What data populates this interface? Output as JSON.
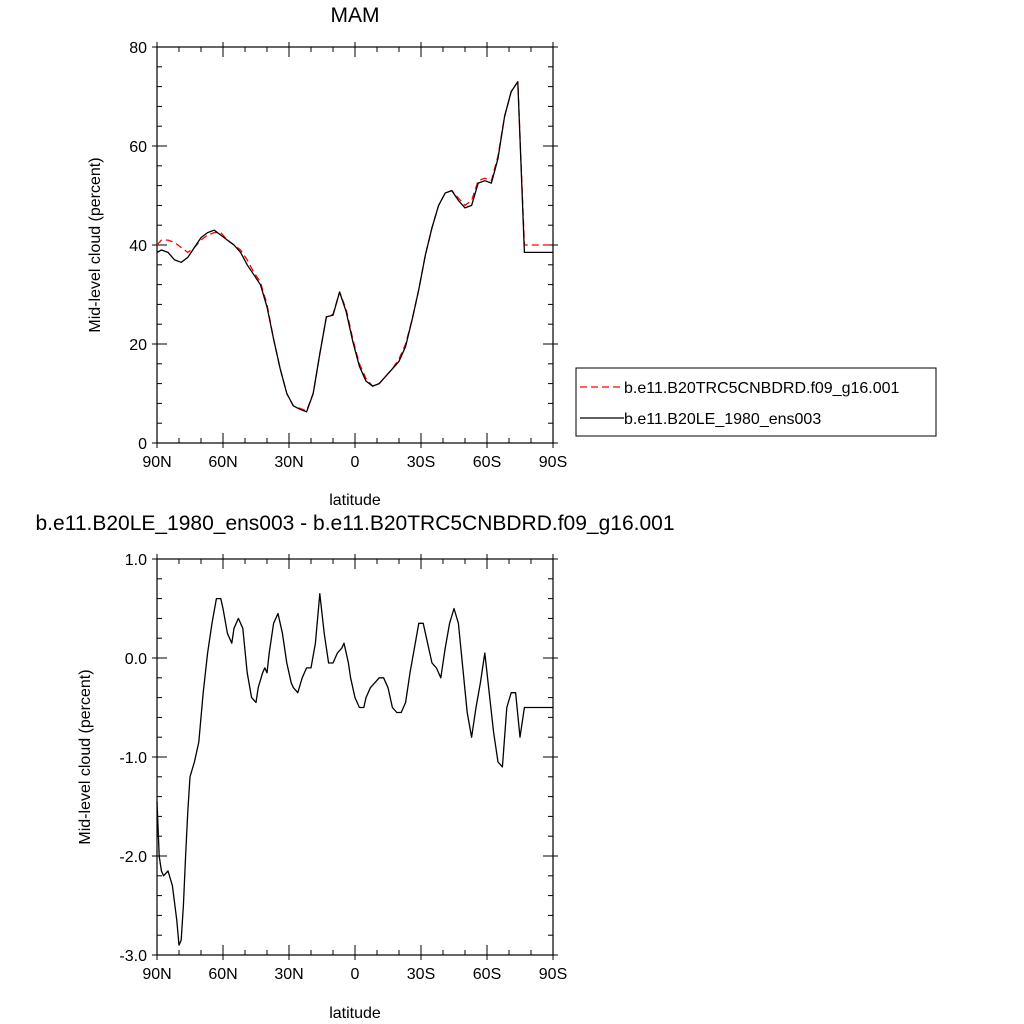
{
  "colors": {
    "series1": "#ff0000",
    "series2": "#000000",
    "axis": "#000000",
    "background": "#ffffff"
  },
  "chart_data": [
    {
      "type": "line",
      "title": "MAM",
      "xlabel": "latitude",
      "ylabel": "Mid-level cloud (percent)",
      "xlim": [
        90,
        -90
      ],
      "ylim": [
        0,
        80
      ],
      "x_ticks": [
        90,
        60,
        30,
        0,
        -30,
        -60,
        -90
      ],
      "x_tick_labels": [
        "90N",
        "60N",
        "30N",
        "0",
        "30S",
        "60S",
        "90S"
      ],
      "y_ticks": [
        0,
        20,
        40,
        60,
        80
      ],
      "y_tick_labels": [
        "0",
        "20",
        "40",
        "60",
        "80"
      ],
      "legend": {
        "position": "right"
      },
      "series": [
        {
          "name": "b.e11.B20TRC5CNBDRD.f09_g16.001",
          "style": "dashed",
          "color": "#ff0000",
          "x": [
            90,
            88,
            85,
            82,
            79,
            76,
            73,
            70,
            67,
            64,
            61,
            58,
            55,
            52,
            49,
            46,
            43,
            40,
            37,
            34,
            31,
            28,
            25,
            22,
            19,
            16,
            13,
            10,
            7,
            4,
            1,
            -2,
            -5,
            -8,
            -11,
            -14,
            -17,
            -20,
            -23,
            -26,
            -29,
            -32,
            -35,
            -38,
            -41,
            -44,
            -47,
            -50,
            -53,
            -56,
            -59,
            -62,
            -65,
            -68,
            -71,
            -74,
            -77,
            -80,
            -83,
            -86,
            -89,
            -90
          ],
          "y": [
            40.0,
            41.0,
            41.0,
            40.5,
            39.5,
            38.5,
            39.5,
            41.0,
            42.0,
            42.5,
            42.5,
            41.0,
            40.0,
            39.0,
            37.0,
            34.5,
            32.5,
            28.0,
            21.0,
            15.0,
            10.0,
            7.5,
            7.0,
            6.5,
            10.0,
            18.0,
            25.5,
            26.0,
            30.5,
            27.0,
            21.0,
            16.0,
            13.0,
            11.5,
            12.0,
            13.5,
            15.0,
            17.0,
            20.0,
            25.0,
            31.0,
            38.0,
            43.5,
            48.0,
            50.5,
            51.0,
            49.5,
            48.0,
            49.0,
            53.0,
            53.5,
            53.0,
            58.0,
            66.0,
            71.0,
            73.0,
            40.0,
            40.0,
            40.0,
            40.0,
            40.0,
            40.0
          ]
        },
        {
          "name": "b.e11.B20LE_1980_ens003",
          "style": "solid",
          "color": "#000000",
          "x": [
            90,
            88,
            85,
            82,
            79,
            76,
            73,
            70,
            67,
            64,
            61,
            58,
            55,
            52,
            49,
            46,
            43,
            40,
            37,
            34,
            31,
            28,
            25,
            22,
            19,
            16,
            13,
            10,
            7,
            4,
            1,
            -2,
            -5,
            -8,
            -11,
            -14,
            -17,
            -20,
            -23,
            -26,
            -29,
            -32,
            -35,
            -38,
            -41,
            -44,
            -47,
            -50,
            -53,
            -56,
            -59,
            -62,
            -65,
            -68,
            -71,
            -74,
            -77,
            -80,
            -83,
            -86,
            -89,
            -90
          ],
          "y": [
            38.5,
            39.0,
            38.5,
            37.0,
            36.5,
            37.5,
            39.5,
            41.5,
            42.5,
            43.0,
            42.0,
            41.0,
            40.0,
            38.5,
            36.0,
            34.0,
            32.0,
            27.5,
            21.0,
            15.0,
            10.0,
            7.5,
            6.8,
            6.3,
            10.0,
            18.0,
            25.5,
            25.8,
            30.5,
            26.5,
            20.5,
            15.5,
            12.5,
            11.5,
            12.0,
            13.5,
            15.0,
            16.5,
            19.5,
            25.0,
            31.0,
            38.0,
            43.5,
            48.0,
            50.5,
            51.0,
            49.0,
            47.5,
            48.0,
            52.5,
            53.0,
            52.5,
            57.5,
            66.0,
            71.0,
            73.0,
            38.5,
            38.5,
            38.5,
            38.5,
            38.5,
            38.5
          ]
        }
      ]
    },
    {
      "type": "line",
      "title": "b.e11.B20LE_1980_ens003 - b.e11.B20TRC5CNBDRD.f09_g16.001",
      "xlabel": "latitude",
      "ylabel": "Mid-level cloud (percent)",
      "xlim": [
        90,
        -90
      ],
      "ylim": [
        -3.0,
        1.0
      ],
      "x_ticks": [
        90,
        60,
        30,
        0,
        -30,
        -60,
        -90
      ],
      "x_tick_labels": [
        "90N",
        "60N",
        "30N",
        "0",
        "30S",
        "60S",
        "90S"
      ],
      "y_ticks": [
        -3.0,
        -2.0,
        -1.0,
        0.0,
        1.0
      ],
      "y_tick_labels": [
        "-3.0",
        "-2.0",
        "-1.0",
        "0.0",
        "1.0"
      ],
      "series": [
        {
          "color": "#000000",
          "style": "solid",
          "x": [
            90,
            89,
            88,
            87,
            85,
            83,
            81,
            80,
            79,
            78,
            77,
            76,
            75,
            73,
            71,
            69,
            67,
            65,
            63,
            61,
            60,
            58,
            56,
            55,
            53,
            51,
            49,
            47,
            45,
            44,
            42,
            41,
            40,
            39,
            37,
            35,
            33,
            31,
            29,
            28,
            26,
            24,
            22,
            20,
            18,
            16,
            14,
            12,
            10,
            8,
            6,
            5,
            4,
            3,
            2,
            0,
            -2,
            -4,
            -5,
            -7,
            -9,
            -11,
            -13,
            -15,
            -17,
            -19,
            -21,
            -23,
            -25,
            -27,
            -29,
            -31,
            -33,
            -35,
            -37,
            -39,
            -41,
            -43,
            -45,
            -47,
            -49,
            -51,
            -53,
            -55,
            -57,
            -59,
            -61,
            -63,
            -65,
            -67,
            -69,
            -71,
            -73,
            -75,
            -77,
            -79,
            -81,
            -83,
            -85,
            -87,
            -88,
            -89,
            -90
          ],
          "y": [
            -1.45,
            -2.0,
            -2.15,
            -2.2,
            -2.15,
            -2.3,
            -2.65,
            -2.9,
            -2.85,
            -2.5,
            -2.0,
            -1.55,
            -1.2,
            -1.05,
            -0.85,
            -0.35,
            0.05,
            0.35,
            0.6,
            0.6,
            0.5,
            0.25,
            0.15,
            0.3,
            0.4,
            0.3,
            -0.15,
            -0.4,
            -0.45,
            -0.3,
            -0.15,
            -0.1,
            -0.15,
            0.05,
            0.35,
            0.45,
            0.25,
            -0.05,
            -0.25,
            -0.3,
            -0.35,
            -0.2,
            -0.1,
            -0.1,
            0.15,
            0.65,
            0.25,
            -0.05,
            -0.05,
            0.05,
            0.1,
            0.15,
            0.05,
            -0.05,
            -0.2,
            -0.4,
            -0.5,
            -0.5,
            -0.4,
            -0.3,
            -0.25,
            -0.2,
            -0.2,
            -0.3,
            -0.5,
            -0.55,
            -0.55,
            -0.45,
            -0.15,
            0.1,
            0.35,
            0.35,
            0.15,
            -0.05,
            -0.1,
            -0.2,
            0.1,
            0.35,
            0.5,
            0.35,
            -0.1,
            -0.55,
            -0.8,
            -0.5,
            -0.25,
            0.05,
            -0.35,
            -0.75,
            -1.05,
            -1.1,
            -0.5,
            -0.35,
            -0.35,
            -0.8,
            -0.5,
            -0.5,
            -0.5,
            -0.5,
            -0.5,
            -0.5,
            -0.5,
            -0.5,
            -0.5
          ]
        }
      ]
    }
  ]
}
